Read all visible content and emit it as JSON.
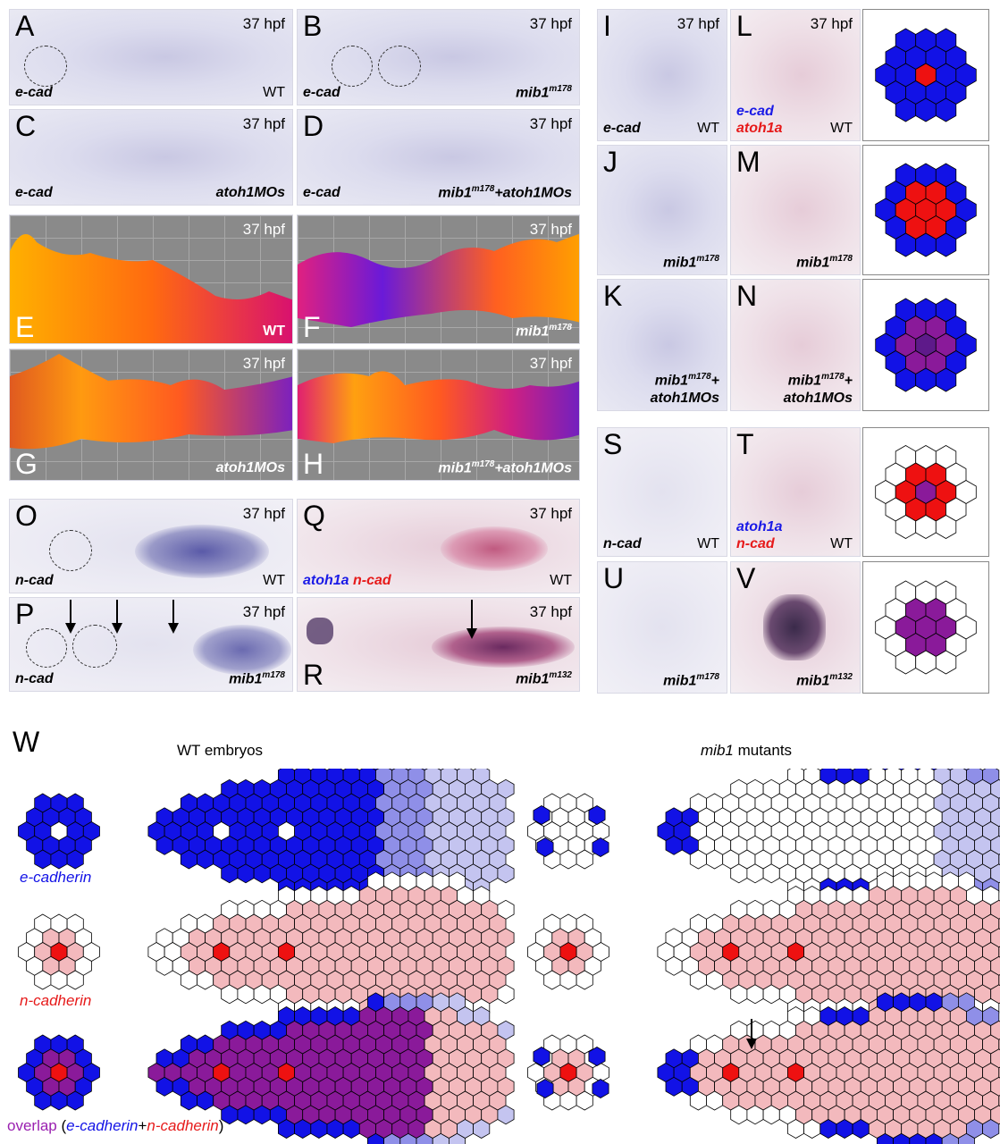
{
  "panels": {
    "A": {
      "letter": "A",
      "time": "37 hpf",
      "marker": "e-cad",
      "geno": "WT"
    },
    "B": {
      "letter": "B",
      "time": "37 hpf",
      "marker": "e-cad",
      "geno": "mib1",
      "geno_sup": "m178"
    },
    "C": {
      "letter": "C",
      "time": "37 hpf",
      "marker": "e-cad",
      "geno": "atoh1MOs"
    },
    "D": {
      "letter": "D",
      "time": "37 hpf",
      "marker": "e-cad",
      "geno": "mib1",
      "geno_sup": "m178",
      "geno_suffix": "+atoh1MOs"
    },
    "E": {
      "letter": "E",
      "time": "37 hpf",
      "geno": "WT"
    },
    "F": {
      "letter": "F",
      "time": "37 hpf",
      "geno": "mib1",
      "geno_sup": "m178"
    },
    "G": {
      "letter": "G",
      "time": "37 hpf",
      "geno": "atoh1MOs"
    },
    "H": {
      "letter": "H",
      "time": "37 hpf",
      "geno": "mib1",
      "geno_sup": "m178",
      "geno_suffix": "+atoh1MOs"
    },
    "I": {
      "letter": "I",
      "time": "37 hpf",
      "marker": "e-cad",
      "geno": "WT"
    },
    "J": {
      "letter": "J",
      "geno": "mib1",
      "geno_sup": "m178"
    },
    "K": {
      "letter": "K",
      "geno": "mib1",
      "geno_sup": "m178",
      "geno_suffix": "+",
      "geno_line2": "atoh1MOs"
    },
    "L": {
      "letter": "L",
      "time": "37 hpf",
      "marker1": "e-cad",
      "marker2": "atoh1a",
      "geno": "WT"
    },
    "M": {
      "letter": "M",
      "geno": "mib1",
      "geno_sup": "m178"
    },
    "N": {
      "letter": "N",
      "geno": "mib1",
      "geno_sup": "m178",
      "geno_suffix": "+",
      "geno_line2": "atoh1MOs"
    },
    "O": {
      "letter": "O",
      "time": "37 hpf",
      "marker": "n-cad",
      "geno": "WT"
    },
    "P": {
      "letter": "P",
      "time": "37 hpf",
      "marker": "n-cad",
      "geno": "mib1",
      "geno_sup": "m178"
    },
    "Q": {
      "letter": "Q",
      "time": "37 hpf",
      "marker1": "atoh1a",
      "marker2": "n-cad",
      "geno": "WT"
    },
    "R": {
      "letter": "R",
      "time": "37 hpf",
      "geno": "mib1",
      "geno_sup": "m132"
    },
    "S": {
      "letter": "S",
      "marker": "n-cad",
      "geno": "WT"
    },
    "T": {
      "letter": "T",
      "marker1": "atoh1a",
      "marker2": "n-cad",
      "geno": "WT"
    },
    "U": {
      "letter": "U",
      "geno": "mib1",
      "geno_sup": "m178"
    },
    "V": {
      "letter": "V",
      "geno": "mib1",
      "geno_sup": "m132"
    }
  },
  "w": {
    "letter": "W",
    "wt_title": "WT embryos",
    "mut_title_italic": "mib1",
    "mut_title_rest": " mutants",
    "ecad": "e-cadherin",
    "ncad": "n-cadherin",
    "overlap": "overlap",
    "overlap_open": " (",
    "overlap_ecad": "e-cadherin",
    "overlap_plus": "+",
    "overlap_ncad": "n-cadherin",
    "overlap_close": ")"
  },
  "colors": {
    "ecad_blue": "#1212e6",
    "ecad_light": "#8f8fe8",
    "ecad_pale": "#c4c4f0",
    "ncad_light": "#f3b9bd",
    "ncad_mid": "#ec8a92",
    "ncad_core": "#ee1111",
    "overlap_purple": "#8a1a9a",
    "overlap_dark": "#5e1a8a",
    "white": "#ffffff"
  }
}
